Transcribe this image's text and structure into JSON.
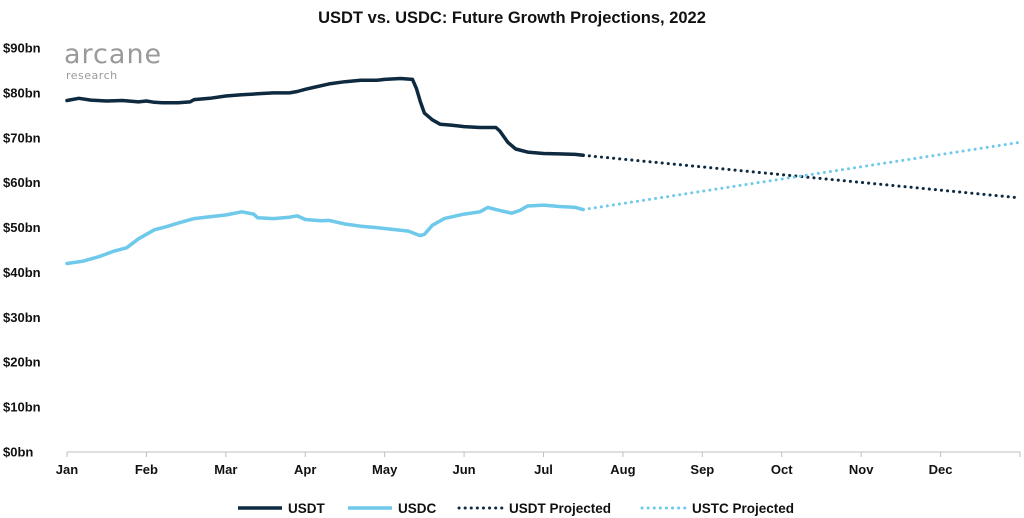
{
  "logo": {
    "name": "arcane",
    "tagline": "research"
  },
  "chart_data": {
    "type": "line",
    "title": "USDT vs. USDC: Future Growth Projections, 2022",
    "xlabel": "",
    "ylabel": "",
    "x_axis": {
      "labels": [
        "Jan",
        "Feb",
        "Mar",
        "Apr",
        "May",
        "Jun",
        "Jul",
        "Aug",
        "Sep",
        "Oct",
        "Nov",
        "Dec"
      ],
      "range_months": [
        0,
        12
      ]
    },
    "y_axis": {
      "ticks": [
        0,
        10,
        20,
        30,
        40,
        50,
        60,
        70,
        80,
        90
      ],
      "tick_labels": [
        "$0bn",
        "$10bn",
        "$20bn",
        "$30bn",
        "$40bn",
        "$50bn",
        "$60bn",
        "$70bn",
        "$80bn",
        "$90bn"
      ],
      "ylim": [
        0,
        90
      ],
      "unit": "billion USD"
    },
    "grid": false,
    "legend_position": "bottom",
    "series": [
      {
        "name": "USDT",
        "style": "solid",
        "color": "#0e2a40",
        "points": [
          [
            0.0,
            78.3
          ],
          [
            0.15,
            78.8
          ],
          [
            0.3,
            78.4
          ],
          [
            0.5,
            78.2
          ],
          [
            0.7,
            78.3
          ],
          [
            0.9,
            78.0
          ],
          [
            1.0,
            78.2
          ],
          [
            1.1,
            77.9
          ],
          [
            1.2,
            77.8
          ],
          [
            1.4,
            77.8
          ],
          [
            1.55,
            78.0
          ],
          [
            1.6,
            78.5
          ],
          [
            1.8,
            78.8
          ],
          [
            2.0,
            79.3
          ],
          [
            2.2,
            79.6
          ],
          [
            2.4,
            79.8
          ],
          [
            2.6,
            80.0
          ],
          [
            2.8,
            80.0
          ],
          [
            2.9,
            80.3
          ],
          [
            3.0,
            80.8
          ],
          [
            3.1,
            81.2
          ],
          [
            3.3,
            82.0
          ],
          [
            3.5,
            82.5
          ],
          [
            3.7,
            82.8
          ],
          [
            3.9,
            82.8
          ],
          [
            4.0,
            83.0
          ],
          [
            4.2,
            83.2
          ],
          [
            4.35,
            83.0
          ],
          [
            4.4,
            81.0
          ],
          [
            4.45,
            78.0
          ],
          [
            4.5,
            75.5
          ],
          [
            4.6,
            74.0
          ],
          [
            4.7,
            73.0
          ],
          [
            4.85,
            72.8
          ],
          [
            5.0,
            72.5
          ],
          [
            5.2,
            72.3
          ],
          [
            5.4,
            72.3
          ],
          [
            5.45,
            71.5
          ],
          [
            5.55,
            69.0
          ],
          [
            5.65,
            67.5
          ],
          [
            5.8,
            66.8
          ],
          [
            6.0,
            66.5
          ],
          [
            6.2,
            66.4
          ],
          [
            6.4,
            66.3
          ],
          [
            6.5,
            66.1
          ]
        ]
      },
      {
        "name": "USDC",
        "style": "solid",
        "color": "#6ec9ea",
        "points": [
          [
            0.0,
            42.0
          ],
          [
            0.2,
            42.5
          ],
          [
            0.4,
            43.5
          ],
          [
            0.6,
            44.8
          ],
          [
            0.75,
            45.5
          ],
          [
            0.9,
            47.5
          ],
          [
            1.0,
            48.5
          ],
          [
            1.1,
            49.5
          ],
          [
            1.25,
            50.2
          ],
          [
            1.4,
            51.0
          ],
          [
            1.6,
            52.0
          ],
          [
            1.8,
            52.4
          ],
          [
            2.0,
            52.8
          ],
          [
            2.2,
            53.5
          ],
          [
            2.35,
            53.0
          ],
          [
            2.4,
            52.2
          ],
          [
            2.6,
            52.0
          ],
          [
            2.8,
            52.3
          ],
          [
            2.9,
            52.6
          ],
          [
            3.0,
            51.8
          ],
          [
            3.2,
            51.5
          ],
          [
            3.3,
            51.6
          ],
          [
            3.5,
            50.8
          ],
          [
            3.7,
            50.3
          ],
          [
            3.9,
            50.0
          ],
          [
            4.1,
            49.6
          ],
          [
            4.3,
            49.2
          ],
          [
            4.4,
            48.5
          ],
          [
            4.45,
            48.2
          ],
          [
            4.5,
            48.5
          ],
          [
            4.6,
            50.5
          ],
          [
            4.75,
            52.0
          ],
          [
            5.0,
            53.0
          ],
          [
            5.2,
            53.5
          ],
          [
            5.3,
            54.5
          ],
          [
            5.4,
            54.0
          ],
          [
            5.6,
            53.2
          ],
          [
            5.7,
            53.8
          ],
          [
            5.8,
            54.8
          ],
          [
            6.0,
            55.0
          ],
          [
            6.2,
            54.7
          ],
          [
            6.4,
            54.5
          ],
          [
            6.5,
            54.0
          ]
        ]
      },
      {
        "name": "USDT Projected",
        "style": "dotted",
        "color": "#0e2a40",
        "points": [
          [
            6.5,
            66.1
          ],
          [
            12.0,
            56.6
          ]
        ]
      },
      {
        "name": "USTC Projected",
        "style": "dotted",
        "color": "#6ec9ea",
        "points": [
          [
            6.5,
            54.0
          ],
          [
            12.0,
            69.0
          ]
        ]
      }
    ]
  }
}
